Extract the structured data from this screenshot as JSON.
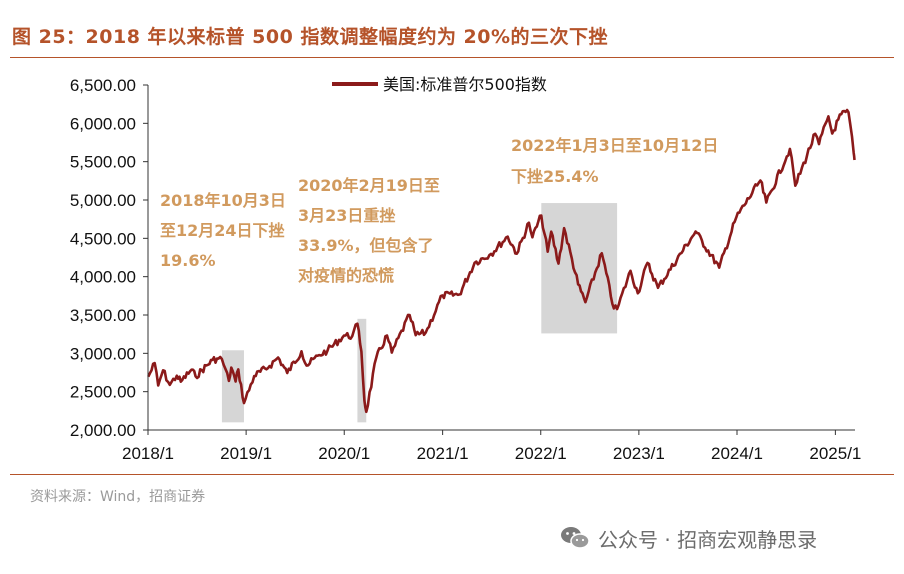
{
  "page": {
    "title": "图 25：2018 年以来标普 500 指数调整幅度约为 20%的三次下挫",
    "source": "资料来源：Wind，招商证券",
    "watermark": "公众号 · 招商宏观静思录",
    "watermark_icon": "wechat-icon"
  },
  "chart_data": {
    "type": "line",
    "title": "",
    "xlabel": "",
    "ylabel": "",
    "series": [
      {
        "name": "美国:标准普尔500指数",
        "color": "#8b1a1a",
        "points": [
          [
            "2018-01-02",
            2695
          ],
          [
            "2018-01-26",
            2872
          ],
          [
            "2018-02-08",
            2581
          ],
          [
            "2018-02-26",
            2779
          ],
          [
            "2018-03-23",
            2588
          ],
          [
            "2018-04-18",
            2708
          ],
          [
            "2018-05-03",
            2630
          ],
          [
            "2018-06-12",
            2786
          ],
          [
            "2018-06-27",
            2699
          ],
          [
            "2018-08-29",
            2914
          ],
          [
            "2018-09-20",
            2931
          ],
          [
            "2018-10-03",
            2925
          ],
          [
            "2018-10-29",
            2641
          ],
          [
            "2018-11-07",
            2814
          ],
          [
            "2018-11-23",
            2633
          ],
          [
            "2018-12-03",
            2790
          ],
          [
            "2018-12-24",
            2351
          ],
          [
            "2019-01-31",
            2704
          ],
          [
            "2019-03-29",
            2834
          ],
          [
            "2019-04-30",
            2946
          ],
          [
            "2019-06-03",
            2744
          ],
          [
            "2019-07-26",
            3026
          ],
          [
            "2019-08-14",
            2840
          ],
          [
            "2019-09-30",
            2977
          ],
          [
            "2019-10-31",
            3038
          ],
          [
            "2019-12-31",
            3231
          ],
          [
            "2020-01-31",
            3226
          ],
          [
            "2020-02-19",
            3386
          ],
          [
            "2020-03-05",
            3024
          ],
          [
            "2020-03-16",
            2386
          ],
          [
            "2020-03-23",
            2237
          ],
          [
            "2020-04-29",
            2940
          ],
          [
            "2020-06-08",
            3232
          ],
          [
            "2020-06-26",
            3009
          ],
          [
            "2020-08-31",
            3500
          ],
          [
            "2020-09-23",
            3237
          ],
          [
            "2020-10-30",
            3270
          ],
          [
            "2020-12-31",
            3756
          ],
          [
            "2021-03-04",
            3768
          ],
          [
            "2021-04-30",
            4181
          ],
          [
            "2021-06-30",
            4297
          ],
          [
            "2021-08-31",
            4523
          ],
          [
            "2021-10-04",
            4300
          ],
          [
            "2021-11-18",
            4704
          ],
          [
            "2021-12-01",
            4513
          ],
          [
            "2022-01-03",
            4797
          ],
          [
            "2022-01-27",
            4326
          ],
          [
            "2022-02-09",
            4587
          ],
          [
            "2022-03-08",
            4171
          ],
          [
            "2022-03-29",
            4632
          ],
          [
            "2022-05-20",
            3901
          ],
          [
            "2022-06-16",
            3667
          ],
          [
            "2022-08-16",
            4305
          ],
          [
            "2022-09-30",
            3586
          ],
          [
            "2022-10-12",
            3577
          ],
          [
            "2022-12-01",
            4076
          ],
          [
            "2022-12-28",
            3783
          ],
          [
            "2023-02-02",
            4179
          ],
          [
            "2023-03-13",
            3855
          ],
          [
            "2023-07-31",
            4589
          ],
          [
            "2023-10-27",
            4117
          ],
          [
            "2023-12-29",
            4770
          ],
          [
            "2024-03-28",
            5254
          ],
          [
            "2024-04-19",
            4967
          ],
          [
            "2024-07-16",
            5667
          ],
          [
            "2024-08-05",
            5186
          ],
          [
            "2024-10-18",
            5864
          ],
          [
            "2024-11-01",
            5729
          ],
          [
            "2024-12-06",
            6090
          ],
          [
            "2024-12-20",
            5867
          ],
          [
            "2025-01-23",
            6119
          ],
          [
            "2025-02-19",
            6144
          ],
          [
            "2025-03-10",
            5615
          ],
          [
            "2025-03-13",
            5522
          ]
        ]
      }
    ],
    "xlim": [
      "2018-01-01",
      "2025-03-15"
    ],
    "ylim": [
      2000,
      6500
    ],
    "y_ticks": [
      "2,000.00",
      "2,500.00",
      "3,000.00",
      "3,500.00",
      "4,000.00",
      "4,500.00",
      "5,000.00",
      "5,500.00",
      "6,000.00",
      "6,500.00"
    ],
    "x_ticks": [
      "2018/1",
      "2019/1",
      "2020/1",
      "2021/1",
      "2022/1",
      "2023/1",
      "2024/1",
      "2025/1"
    ],
    "grid": false,
    "legend_position": "top",
    "shaded_regions": [
      {
        "start": "2018-10-03",
        "end": "2018-12-24",
        "low": 2100,
        "high": 3040
      },
      {
        "start": "2020-02-19",
        "end": "2020-03-23",
        "low": 2100,
        "high": 3450
      },
      {
        "start": "2022-01-03",
        "end": "2022-10-12",
        "low": 3260,
        "high": 4960
      }
    ],
    "annotations": [
      {
        "lines": [
          "2018年10月3日",
          "至12月24日下挫",
          "19.6%"
        ]
      },
      {
        "lines": [
          "2020年2月19日至",
          "3月23日重挫",
          "33.9%，但包含了",
          "对疫情的恐慌"
        ]
      },
      {
        "lines": [
          "2022年1月3日至10月12日",
          "下挫25.4%"
        ]
      }
    ]
  }
}
